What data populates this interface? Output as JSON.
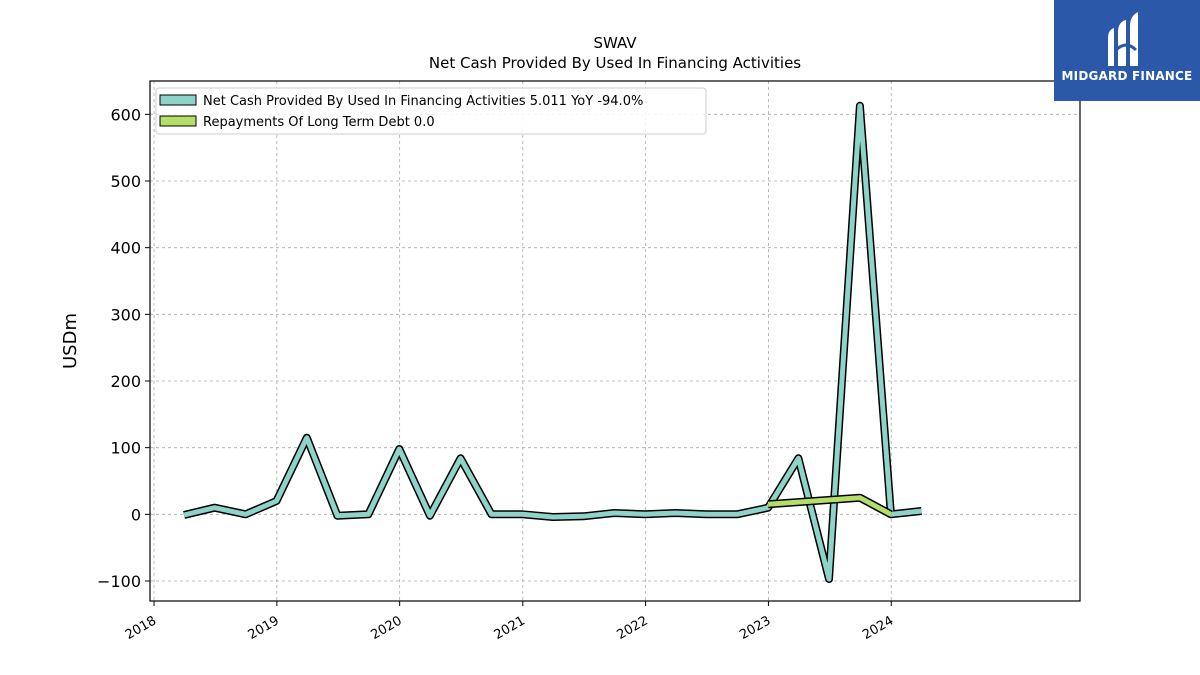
{
  "chart_data": {
    "type": "line",
    "title": "SWAV",
    "subtitle": "Net Cash Provided By Used In Financing Activities",
    "ylabel": "USDm",
    "xlim": [
      "2017-12-20",
      "2025-07-15"
    ],
    "ylim": [
      -130,
      650
    ],
    "yticks": [
      -100,
      0,
      100,
      200,
      300,
      400,
      500,
      600
    ],
    "ytick_labels": [
      "−100",
      "0",
      "100",
      "200",
      "300",
      "400",
      "500",
      "600"
    ],
    "xticks": [
      "2018-01-01",
      "2019-01-01",
      "2020-01-01",
      "2021-01-01",
      "2022-01-01",
      "2023-01-01",
      "2024-01-01"
    ],
    "xtick_labels": [
      "2018",
      "2019",
      "2020",
      "2021",
      "2022",
      "2023",
      "2024"
    ],
    "grid": true,
    "legend_position": "top-left",
    "series": [
      {
        "name": "Net Cash Provided By Used In Financing Activities",
        "legend_label": "Net Cash Provided By Used In Financing Activities  5.011 YoY -94.0%",
        "color": "#8dd3c7",
        "x": [
          "2018-03-31",
          "2018-06-30",
          "2018-09-30",
          "2018-12-31",
          "2019-03-31",
          "2019-06-30",
          "2019-09-30",
          "2019-12-31",
          "2020-03-31",
          "2020-06-30",
          "2020-09-30",
          "2020-12-31",
          "2021-03-31",
          "2021-06-30",
          "2021-09-30",
          "2021-12-31",
          "2022-03-31",
          "2022-06-30",
          "2022-09-30",
          "2022-12-31",
          "2023-03-31",
          "2023-06-30",
          "2023-09-30",
          "2023-12-31",
          "2024-03-31"
        ],
        "y": [
          -1,
          10,
          0,
          20,
          115,
          -2,
          0,
          98,
          -2,
          84,
          0,
          0,
          -4,
          -3,
          2,
          0,
          2,
          0,
          0,
          10,
          84,
          -97,
          613,
          0,
          5
        ]
      },
      {
        "name": "Repayments Of Long Term Debt",
        "legend_label": "Repayments Of Long Term Debt  0.0",
        "color": "#b3de69",
        "x": [
          "2022-12-31",
          "2023-09-30",
          "2023-12-31"
        ],
        "y": [
          15,
          25,
          0
        ]
      }
    ]
  },
  "logo": {
    "text": "MIDGARD FINANCE",
    "color": "#2b58a8"
  }
}
